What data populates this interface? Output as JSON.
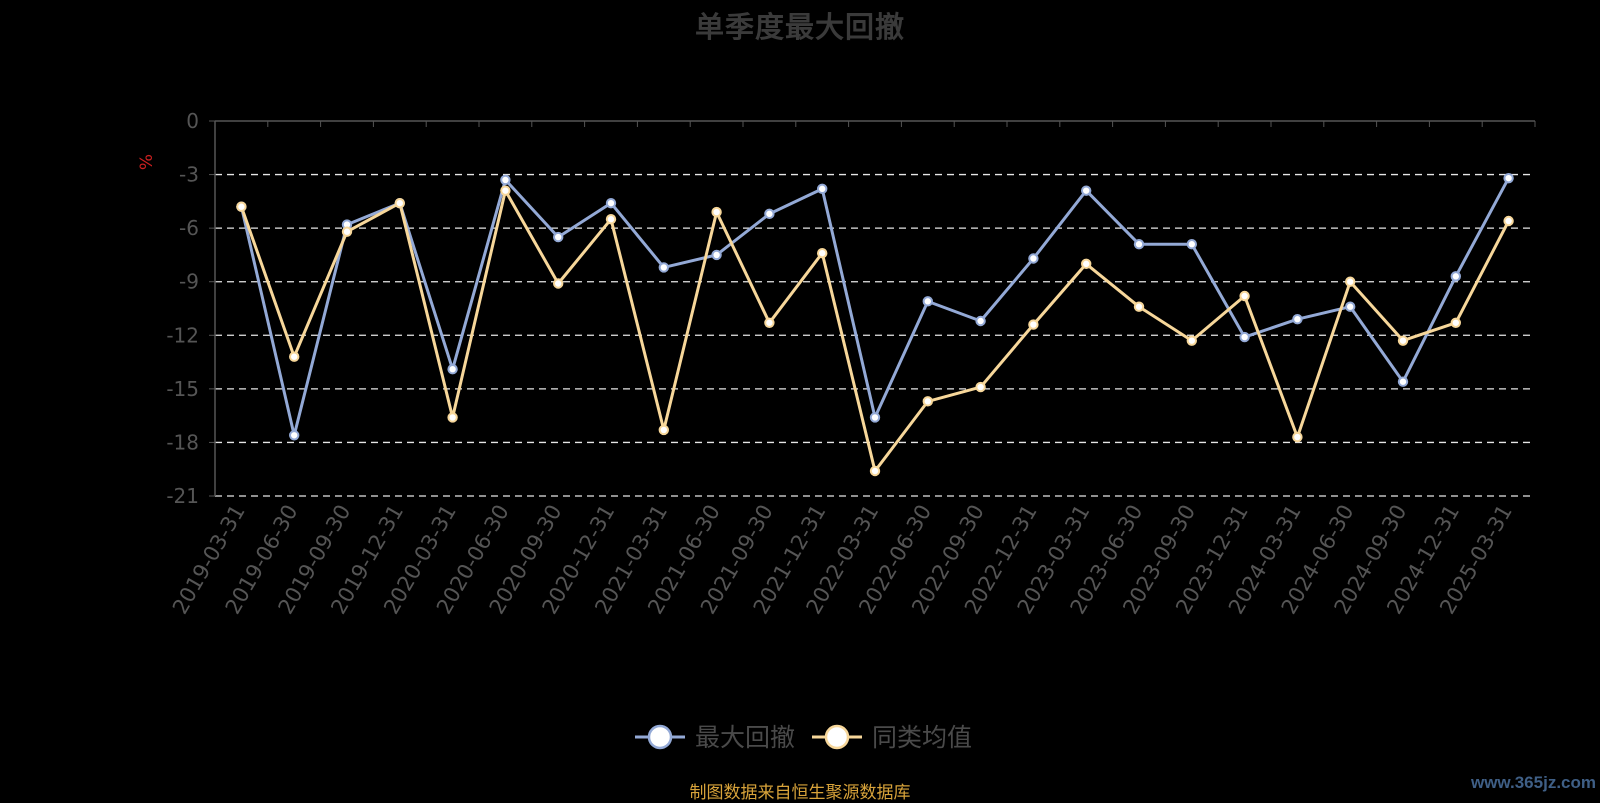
{
  "footer": {
    "source": "制图数据来自恒生聚源数据库",
    "watermark": "www.365jz.com"
  },
  "chart_data": {
    "type": "line",
    "title": "单季度最大回撤",
    "ylabel": "%",
    "ylim": [
      -21,
      0
    ],
    "yticks": [
      0,
      -3,
      -6,
      -9,
      -12,
      -15,
      -18,
      -21
    ],
    "grid": "dashed horizontal",
    "legend": "bottom-center",
    "x": [
      "2019-03-31",
      "2019-06-30",
      "2019-09-30",
      "2019-12-31",
      "2020-03-31",
      "2020-06-30",
      "2020-09-30",
      "2020-12-31",
      "2021-03-31",
      "2021-06-30",
      "2021-09-30",
      "2021-12-31",
      "2022-03-31",
      "2022-06-30",
      "2022-09-30",
      "2022-12-31",
      "2023-03-31",
      "2023-06-30",
      "2023-09-30",
      "2023-12-31",
      "2024-03-31",
      "2024-06-30",
      "2024-09-30",
      "2024-12-31",
      "2025-03-31"
    ],
    "series": [
      {
        "name": "最大回撤",
        "color": "#93a9d6",
        "values": [
          -4.8,
          -17.6,
          -5.8,
          -4.6,
          -13.9,
          -3.3,
          -6.5,
          -4.6,
          -8.2,
          -7.5,
          -5.2,
          -3.8,
          -16.6,
          -10.1,
          -11.2,
          -7.7,
          -3.9,
          -6.9,
          -6.9,
          -12.1,
          -11.1,
          -10.4,
          -14.6,
          -8.7,
          -3.2
        ]
      },
      {
        "name": "同类均值",
        "color": "#f7d79a",
        "values": [
          -4.8,
          -13.2,
          -6.2,
          -4.6,
          -16.6,
          -3.9,
          -9.1,
          -5.5,
          -17.3,
          -5.1,
          -11.3,
          -7.4,
          -19.6,
          -15.7,
          -14.9,
          -11.4,
          -8.0,
          -10.4,
          -12.3,
          -9.8,
          -17.7,
          -9.0,
          -12.3,
          -11.3,
          -5.6
        ]
      }
    ]
  }
}
